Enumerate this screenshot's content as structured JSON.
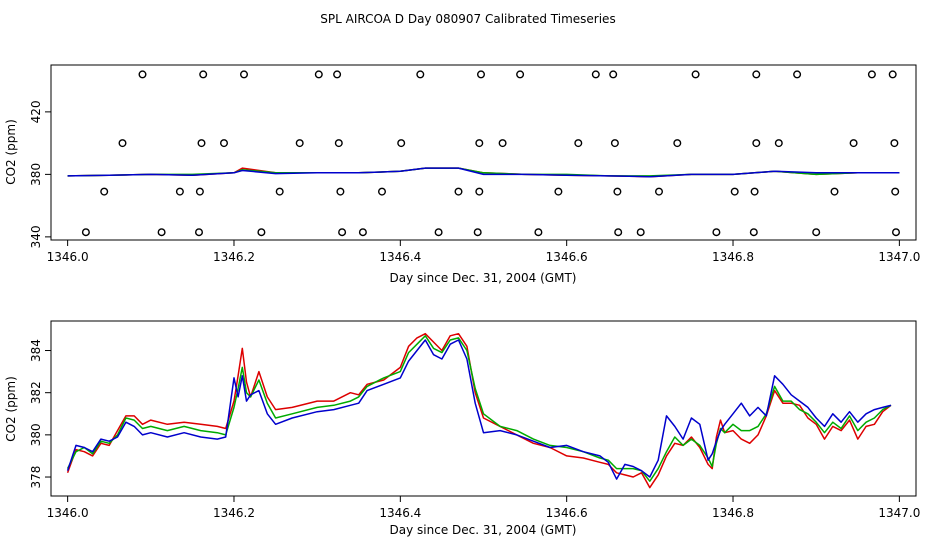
{
  "figure": {
    "title": "SPL AIRCOA D  Day 080907  Calibrated Timeseries"
  },
  "chart_data": [
    {
      "type": "scatter",
      "title": "",
      "xlabel": "Day since Dec. 31, 2004 (GMT)",
      "ylabel": "CO2 (ppm)",
      "xlim": [
        1345.98,
        1347.02
      ],
      "ylim": [
        338,
        450
      ],
      "x_ticks": [
        "1346.0",
        "1346.2",
        "1346.4",
        "1346.6",
        "1346.8",
        "1347.0"
      ],
      "x_tick_values": [
        1346.0,
        1346.2,
        1346.4,
        1346.6,
        1346.8,
        1347.0
      ],
      "y_ticks": [
        "340",
        "380",
        "420"
      ],
      "y_tick_values": [
        340,
        380,
        420
      ],
      "calibration_points": {
        "marker": "open-circle",
        "color": "#000000",
        "x": [
          1346.09,
          1346.163,
          1346.212,
          1346.302,
          1346.324,
          1346.424,
          1346.497,
          1346.544,
          1346.635,
          1346.656,
          1346.755,
          1346.828,
          1346.877,
          1346.967,
          1346.992,
          1346.066,
          1346.161,
          1346.188,
          1346.279,
          1346.326,
          1346.401,
          1346.495,
          1346.523,
          1346.614,
          1346.658,
          1346.733,
          1346.828,
          1346.855,
          1346.945,
          1346.994,
          1346.044,
          1346.135,
          1346.159,
          1346.255,
          1346.328,
          1346.378,
          1346.47,
          1346.495,
          1346.59,
          1346.661,
          1346.711,
          1346.802,
          1346.826,
          1346.922,
          1346.995,
          1346.022,
          1346.113,
          1346.158,
          1346.233,
          1346.33,
          1346.355,
          1346.446,
          1346.493,
          1346.566,
          1346.662,
          1346.689,
          1346.78,
          1346.825,
          1346.9,
          1346.996
        ],
        "y": [
          444,
          444,
          444,
          444,
          444,
          444,
          444,
          444,
          444,
          444,
          444,
          444,
          444,
          444,
          444,
          400,
          400,
          400,
          400,
          400,
          400,
          400,
          400,
          400,
          400,
          400,
          400,
          400,
          400,
          400,
          369,
          369,
          369,
          369,
          369,
          369,
          369,
          369,
          369,
          369,
          369,
          369,
          369,
          369,
          369,
          343,
          343,
          343,
          343,
          343,
          343,
          343,
          343,
          343,
          343,
          343,
          343,
          343,
          343,
          343
        ]
      },
      "series": [
        {
          "color": "#dd0000",
          "x": [
            1346.0,
            1346.05,
            1346.1,
            1346.15,
            1346.2,
            1346.21,
            1346.25,
            1346.3,
            1346.35,
            1346.4,
            1346.43,
            1346.47,
            1346.5,
            1346.55,
            1346.6,
            1346.65,
            1346.7,
            1346.75,
            1346.8,
            1346.85,
            1346.9,
            1346.95,
            1347.0
          ],
          "y": [
            379,
            379.5,
            380,
            379.5,
            381,
            384,
            381,
            381,
            381,
            382,
            384,
            384,
            381,
            380,
            379.5,
            379,
            378.5,
            380,
            380,
            382,
            380,
            381,
            381
          ]
        },
        {
          "color": "#00aa00",
          "x": [
            1346.0,
            1346.05,
            1346.1,
            1346.15,
            1346.2,
            1346.21,
            1346.25,
            1346.3,
            1346.35,
            1346.4,
            1346.43,
            1346.47,
            1346.5,
            1346.55,
            1346.6,
            1346.65,
            1346.7,
            1346.75,
            1346.8,
            1346.85,
            1346.9,
            1346.95,
            1347.0
          ],
          "y": [
            379,
            379.5,
            380,
            380,
            381,
            383,
            381,
            381,
            381,
            382,
            384,
            384,
            381,
            380,
            380,
            379,
            379,
            380,
            380,
            382,
            380,
            381,
            381
          ]
        },
        {
          "color": "#0000cc",
          "x": [
            1346.0,
            1346.05,
            1346.1,
            1346.15,
            1346.2,
            1346.21,
            1346.25,
            1346.3,
            1346.35,
            1346.4,
            1346.43,
            1346.47,
            1346.5,
            1346.55,
            1346.6,
            1346.65,
            1346.7,
            1346.75,
            1346.8,
            1346.85,
            1346.9,
            1346.95,
            1347.0
          ],
          "y": [
            379,
            379.5,
            380,
            379.5,
            381,
            382.5,
            380.5,
            381,
            381,
            382,
            384,
            384,
            380,
            380,
            379.5,
            379,
            378.5,
            380,
            380,
            382,
            381,
            381,
            381
          ]
        }
      ]
    },
    {
      "type": "line",
      "title": "",
      "xlabel": "Day since Dec. 31, 2004 (GMT)",
      "ylabel": "CO2 (ppm)",
      "xlim": [
        1345.98,
        1347.02
      ],
      "ylim": [
        377.1,
        385.4
      ],
      "x_ticks": [
        "1346.0",
        "1346.2",
        "1346.4",
        "1346.6",
        "1346.8",
        "1347.0"
      ],
      "x_tick_values": [
        1346.0,
        1346.2,
        1346.4,
        1346.6,
        1346.8,
        1347.0
      ],
      "y_ticks": [
        "378",
        "380",
        "382",
        "384"
      ],
      "y_tick_values": [
        378,
        380,
        382,
        384
      ],
      "series": [
        {
          "color": "#dd0000",
          "x": [
            1346.0,
            1346.01,
            1346.02,
            1346.03,
            1346.04,
            1346.05,
            1346.06,
            1346.07,
            1346.08,
            1346.09,
            1346.1,
            1346.12,
            1346.14,
            1346.16,
            1346.18,
            1346.19,
            1346.2,
            1346.205,
            1346.21,
            1346.215,
            1346.22,
            1346.23,
            1346.24,
            1346.25,
            1346.27,
            1346.3,
            1346.32,
            1346.34,
            1346.35,
            1346.36,
            1346.38,
            1346.4,
            1346.41,
            1346.42,
            1346.43,
            1346.44,
            1346.45,
            1346.46,
            1346.47,
            1346.48,
            1346.49,
            1346.5,
            1346.52,
            1346.54,
            1346.56,
            1346.58,
            1346.6,
            1346.62,
            1346.64,
            1346.65,
            1346.66,
            1346.67,
            1346.68,
            1346.69,
            1346.7,
            1346.71,
            1346.72,
            1346.73,
            1346.74,
            1346.75,
            1346.76,
            1346.77,
            1346.775,
            1346.78,
            1346.785,
            1346.79,
            1346.8,
            1346.81,
            1346.82,
            1346.83,
            1346.84,
            1346.85,
            1346.86,
            1346.87,
            1346.88,
            1346.89,
            1346.9,
            1346.91,
            1346.92,
            1346.93,
            1346.94,
            1346.95,
            1346.96,
            1346.97,
            1346.98,
            1346.99
          ],
          "y": [
            378.2,
            379.3,
            379.2,
            379.0,
            379.6,
            379.5,
            380.2,
            380.9,
            380.9,
            380.5,
            380.7,
            380.5,
            380.6,
            380.5,
            380.4,
            380.3,
            381.6,
            382.8,
            384.1,
            382.5,
            381.8,
            383.0,
            381.8,
            381.2,
            381.3,
            381.6,
            381.6,
            382.0,
            381.9,
            382.4,
            382.6,
            383.2,
            384.2,
            384.6,
            384.8,
            384.4,
            384.0,
            384.7,
            384.8,
            384.2,
            382.0,
            380.8,
            380.4,
            380.0,
            379.6,
            379.4,
            379.0,
            378.9,
            378.7,
            378.6,
            378.2,
            378.1,
            378.0,
            378.2,
            377.5,
            378.1,
            379.0,
            379.6,
            379.5,
            379.9,
            379.4,
            378.6,
            378.4,
            379.9,
            380.7,
            380.1,
            380.2,
            379.8,
            379.6,
            380.0,
            380.9,
            382.1,
            381.5,
            381.5,
            381.4,
            380.8,
            380.5,
            379.8,
            380.4,
            380.2,
            380.7,
            379.8,
            380.4,
            380.5,
            381.1,
            381.4
          ]
        },
        {
          "color": "#00aa00",
          "x": [
            1346.0,
            1346.01,
            1346.02,
            1346.03,
            1346.04,
            1346.05,
            1346.06,
            1346.07,
            1346.08,
            1346.09,
            1346.1,
            1346.12,
            1346.14,
            1346.16,
            1346.18,
            1346.19,
            1346.2,
            1346.205,
            1346.21,
            1346.215,
            1346.22,
            1346.23,
            1346.24,
            1346.25,
            1346.27,
            1346.3,
            1346.32,
            1346.34,
            1346.35,
            1346.36,
            1346.38,
            1346.4,
            1346.41,
            1346.42,
            1346.43,
            1346.44,
            1346.45,
            1346.46,
            1346.47,
            1346.48,
            1346.49,
            1346.5,
            1346.52,
            1346.54,
            1346.56,
            1346.58,
            1346.6,
            1346.62,
            1346.64,
            1346.65,
            1346.66,
            1346.67,
            1346.68,
            1346.69,
            1346.7,
            1346.71,
            1346.72,
            1346.73,
            1346.74,
            1346.75,
            1346.76,
            1346.77,
            1346.775,
            1346.78,
            1346.785,
            1346.79,
            1346.8,
            1346.81,
            1346.82,
            1346.83,
            1346.84,
            1346.85,
            1346.86,
            1346.87,
            1346.88,
            1346.89,
            1346.9,
            1346.91,
            1346.92,
            1346.93,
            1346.94,
            1346.95,
            1346.96,
            1346.97,
            1346.98,
            1346.99
          ],
          "y": [
            378.4,
            379.2,
            379.4,
            379.1,
            379.7,
            379.6,
            380.0,
            380.8,
            380.7,
            380.3,
            380.4,
            380.2,
            380.4,
            380.2,
            380.1,
            380.0,
            381.3,
            382.2,
            383.2,
            382.0,
            381.8,
            382.6,
            381.5,
            380.8,
            381.0,
            381.3,
            381.4,
            381.6,
            381.8,
            382.3,
            382.7,
            383.0,
            383.9,
            384.3,
            384.7,
            384.1,
            383.9,
            384.5,
            384.6,
            384.0,
            382.2,
            381.0,
            380.4,
            380.2,
            379.8,
            379.5,
            379.4,
            379.2,
            378.9,
            378.8,
            378.4,
            378.4,
            378.4,
            378.3,
            377.8,
            378.4,
            379.2,
            379.9,
            379.5,
            379.8,
            379.5,
            378.9,
            378.5,
            379.6,
            380.3,
            380.1,
            380.5,
            380.2,
            380.2,
            380.4,
            381.0,
            382.3,
            381.6,
            381.6,
            381.2,
            381.0,
            380.6,
            380.1,
            380.6,
            380.3,
            380.9,
            380.2,
            380.6,
            380.8,
            381.2,
            381.4
          ]
        },
        {
          "color": "#0000cc",
          "x": [
            1346.0,
            1346.01,
            1346.02,
            1346.03,
            1346.04,
            1346.05,
            1346.06,
            1346.07,
            1346.08,
            1346.09,
            1346.1,
            1346.12,
            1346.14,
            1346.16,
            1346.18,
            1346.19,
            1346.2,
            1346.205,
            1346.21,
            1346.215,
            1346.22,
            1346.23,
            1346.24,
            1346.25,
            1346.27,
            1346.3,
            1346.32,
            1346.34,
            1346.35,
            1346.36,
            1346.38,
            1346.4,
            1346.41,
            1346.42,
            1346.43,
            1346.44,
            1346.45,
            1346.46,
            1346.47,
            1346.48,
            1346.49,
            1346.5,
            1346.52,
            1346.54,
            1346.56,
            1346.58,
            1346.6,
            1346.62,
            1346.64,
            1346.65,
            1346.66,
            1346.67,
            1346.68,
            1346.69,
            1346.7,
            1346.71,
            1346.72,
            1346.73,
            1346.74,
            1346.75,
            1346.76,
            1346.77,
            1346.775,
            1346.78,
            1346.785,
            1346.79,
            1346.8,
            1346.81,
            1346.82,
            1346.83,
            1346.84,
            1346.85,
            1346.86,
            1346.87,
            1346.88,
            1346.89,
            1346.9,
            1346.91,
            1346.92,
            1346.93,
            1346.94,
            1346.95,
            1346.96,
            1346.97,
            1346.98,
            1346.99
          ],
          "y": [
            378.3,
            379.5,
            379.4,
            379.2,
            379.8,
            379.7,
            379.9,
            380.6,
            380.4,
            380.0,
            380.1,
            379.9,
            380.1,
            379.9,
            379.8,
            379.9,
            382.7,
            381.8,
            382.8,
            381.6,
            381.9,
            382.1,
            381.0,
            380.5,
            380.8,
            381.1,
            381.2,
            381.4,
            381.5,
            382.1,
            382.4,
            382.7,
            383.5,
            384.0,
            384.5,
            383.8,
            383.6,
            384.3,
            384.5,
            383.6,
            381.5,
            380.1,
            380.2,
            380.0,
            379.7,
            379.4,
            379.5,
            379.2,
            379.0,
            378.7,
            377.9,
            378.6,
            378.5,
            378.3,
            378.0,
            378.8,
            380.9,
            380.4,
            379.8,
            380.8,
            380.5,
            378.8,
            379.1,
            379.7,
            380.2,
            380.5,
            381.0,
            381.5,
            380.9,
            381.3,
            380.9,
            382.8,
            382.4,
            381.9,
            381.6,
            381.3,
            380.8,
            380.4,
            381.0,
            380.6,
            381.1,
            380.6,
            381.0,
            381.2,
            381.3,
            381.4
          ]
        }
      ]
    }
  ]
}
